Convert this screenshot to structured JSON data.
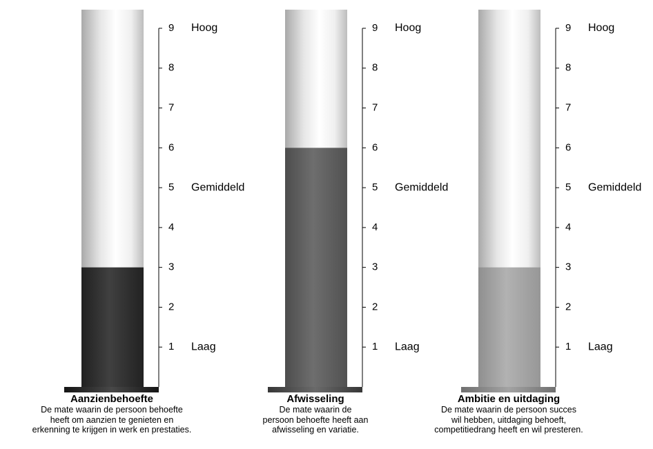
{
  "chart_data": [
    {
      "type": "bar",
      "categories": [
        "Aanzienbehoefte"
      ],
      "values": [
        3
      ],
      "ylim": [
        0,
        9
      ],
      "yticks": [
        "1",
        "2",
        "3",
        "4",
        "5",
        "6",
        "7",
        "8",
        "9"
      ],
      "level_labels": [
        {
          "at": 9,
          "text": "Hoog"
        },
        {
          "at": 5,
          "text": "Gemiddeld"
        },
        {
          "at": 1,
          "text": "Laag"
        }
      ],
      "title": "Aanzienbehoefte",
      "description": [
        "De mate waarin de persoon behoefte",
        "heeft om aanzien te genieten en",
        "erkenning te krijgen in werk en prestaties."
      ],
      "fill_color": "#262626",
      "base_color": "#1a1a1a"
    },
    {
      "type": "bar",
      "categories": [
        "Afwisseling"
      ],
      "values": [
        6
      ],
      "ylim": [
        0,
        9
      ],
      "yticks": [
        "1",
        "2",
        "3",
        "4",
        "5",
        "6",
        "7",
        "8",
        "9"
      ],
      "level_labels": [
        {
          "at": 9,
          "text": "Hoog"
        },
        {
          "at": 5,
          "text": "Gemiddeld"
        },
        {
          "at": 1,
          "text": "Laag"
        }
      ],
      "title": "Afwisseling",
      "description": [
        "De mate waarin de",
        "persoon behoefte heeft aan",
        "afwisseling en variatie."
      ],
      "fill_color": "#5a5a5a",
      "base_color": "#454545"
    },
    {
      "type": "bar",
      "categories": [
        "Ambitie en uitdaging"
      ],
      "values": [
        3
      ],
      "ylim": [
        0,
        9
      ],
      "yticks": [
        "1",
        "2",
        "3",
        "4",
        "5",
        "6",
        "7",
        "8",
        "9"
      ],
      "level_labels": [
        {
          "at": 9,
          "text": "Hoog"
        },
        {
          "at": 5,
          "text": "Gemiddeld"
        },
        {
          "at": 1,
          "text": "Laag"
        }
      ],
      "title": "Ambitie en uitdaging",
      "description": [
        "De mate waarin de persoon succes",
        "wil hebben, uitdaging behoeft,",
        "competitiedrang heeft en wil presteren."
      ],
      "fill_color": "#a8a8a8",
      "base_color": "#8c8c8c"
    }
  ]
}
